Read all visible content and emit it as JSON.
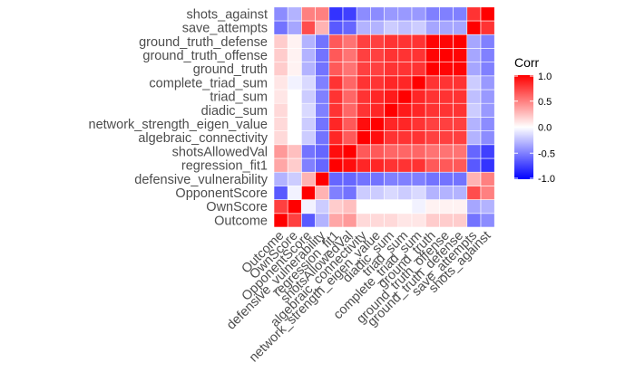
{
  "chart_data": {
    "type": "heatmap",
    "variables": [
      "Outcome",
      "OwnScore",
      "OpponentScore",
      "defensive_vulnerability",
      "regression_fit1",
      "shotsAllowedVal",
      "algebraic_connectivity",
      "network_strength_eigen_value",
      "diadic_sum",
      "triad_sum",
      "complete_triad_sum",
      "ground_truth",
      "ground_truth_offense",
      "ground_truth_defense",
      "save_attempts",
      "shots_against"
    ],
    "matrix": [
      [
        1.0,
        0.75,
        -0.65,
        -0.3,
        0.35,
        0.4,
        0.15,
        0.15,
        0.15,
        0.1,
        0.1,
        0.2,
        0.2,
        0.2,
        -0.55,
        -0.45
      ],
      [
        0.75,
        1.0,
        -0.05,
        -0.2,
        0.2,
        0.25,
        0.0,
        0.0,
        0.0,
        0.0,
        -0.05,
        0.05,
        0.05,
        0.05,
        -0.35,
        -0.3
      ],
      [
        -0.65,
        -0.05,
        1.0,
        0.3,
        -0.5,
        -0.55,
        -0.2,
        -0.2,
        -0.15,
        -0.2,
        -0.15,
        -0.3,
        -0.3,
        -0.3,
        0.7,
        0.5
      ],
      [
        -0.3,
        -0.2,
        0.3,
        1.0,
        -0.6,
        -0.6,
        -0.55,
        -0.55,
        -0.5,
        -0.5,
        -0.5,
        -0.55,
        -0.55,
        -0.55,
        0.3,
        0.5
      ],
      [
        0.35,
        0.2,
        -0.5,
        -0.6,
        1.0,
        0.95,
        0.85,
        0.85,
        0.8,
        0.8,
        0.8,
        0.65,
        0.65,
        0.65,
        -0.65,
        -0.8
      ],
      [
        0.4,
        0.25,
        -0.55,
        -0.6,
        0.95,
        1.0,
        0.65,
        0.65,
        0.6,
        0.6,
        0.6,
        0.55,
        0.55,
        0.55,
        -0.6,
        -0.75
      ],
      [
        0.15,
        0.0,
        -0.2,
        -0.55,
        0.85,
        0.65,
        1.0,
        0.95,
        0.8,
        0.8,
        0.8,
        0.75,
        0.75,
        0.75,
        -0.3,
        -0.45
      ],
      [
        0.15,
        0.0,
        -0.2,
        -0.55,
        0.85,
        0.65,
        0.95,
        1.0,
        0.85,
        0.85,
        0.8,
        0.75,
        0.75,
        0.75,
        -0.3,
        -0.45
      ],
      [
        0.15,
        0.0,
        -0.15,
        -0.5,
        0.8,
        0.6,
        0.8,
        0.85,
        1.0,
        0.9,
        0.85,
        0.8,
        0.8,
        0.8,
        -0.2,
        -0.4
      ],
      [
        0.1,
        0.0,
        -0.2,
        -0.5,
        0.8,
        0.6,
        0.8,
        0.85,
        0.9,
        1.0,
        0.85,
        0.8,
        0.8,
        0.8,
        -0.25,
        -0.4
      ],
      [
        0.1,
        -0.05,
        -0.15,
        -0.5,
        0.8,
        0.6,
        0.8,
        0.8,
        0.85,
        0.85,
        1.0,
        0.8,
        0.8,
        0.8,
        -0.2,
        -0.4
      ],
      [
        0.2,
        0.05,
        -0.3,
        -0.55,
        0.65,
        0.55,
        0.75,
        0.75,
        0.8,
        0.8,
        0.8,
        1.0,
        0.98,
        0.98,
        -0.35,
        -0.5
      ],
      [
        0.2,
        0.05,
        -0.3,
        -0.55,
        0.65,
        0.55,
        0.75,
        0.75,
        0.8,
        0.8,
        0.8,
        0.98,
        1.0,
        0.98,
        -0.35,
        -0.5
      ],
      [
        0.2,
        0.05,
        -0.3,
        -0.55,
        0.65,
        0.55,
        0.75,
        0.75,
        0.8,
        0.8,
        0.8,
        0.98,
        0.98,
        1.0,
        -0.35,
        -0.5
      ],
      [
        -0.55,
        -0.35,
        0.7,
        0.3,
        -0.65,
        -0.6,
        -0.3,
        -0.3,
        -0.2,
        -0.25,
        -0.2,
        -0.35,
        -0.35,
        -0.35,
        1.0,
        0.8
      ],
      [
        -0.45,
        -0.3,
        0.5,
        0.5,
        -0.8,
        -0.75,
        -0.45,
        -0.45,
        -0.4,
        -0.4,
        -0.4,
        -0.5,
        -0.5,
        -0.5,
        0.8,
        1.0
      ]
    ],
    "legend": {
      "title": "Corr",
      "ticks": [
        "1.0",
        "0.5",
        "0.0",
        "-0.5",
        "-1.0"
      ],
      "tick_values": [
        1.0,
        0.5,
        0.0,
        -0.5,
        -1.0
      ],
      "range": [
        -1,
        1
      ],
      "placement": "right"
    },
    "colors": {
      "low": "#0000ff",
      "mid": "#ffffff",
      "high": "#ff0000"
    },
    "grid": false
  }
}
